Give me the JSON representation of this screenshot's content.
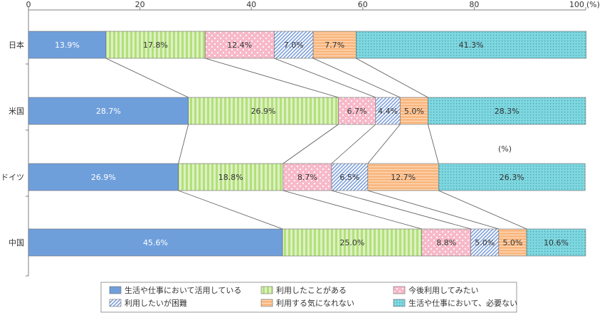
{
  "chart_data": {
    "type": "bar",
    "stacked": true,
    "orientation": "horizontal",
    "categories": [
      "日本",
      "米国",
      "ドイツ",
      "中国"
    ],
    "xlim": [
      0,
      100
    ],
    "x_ticks": [
      "0",
      "20",
      "40",
      "60",
      "80",
      "100"
    ],
    "x_unit": "(%)",
    "unit_note": "(%)",
    "series": [
      {
        "name": "生活や仕事において活用している",
        "values": [
          13.9,
          28.7,
          26.9,
          45.6
        ],
        "labels": [
          "13.9%",
          "28.7%",
          "26.9%",
          "45.6%"
        ],
        "color": "#6f9fdb",
        "pattern": "solid"
      },
      {
        "name": "利用したことがある",
        "values": [
          17.8,
          26.9,
          18.8,
          25.0
        ],
        "labels": [
          "17.8%",
          "26.9%",
          "18.8%",
          "25.0%"
        ],
        "color": "#b3e07a",
        "pattern": "vlines"
      },
      {
        "name": "今後利用してみたい",
        "values": [
          12.4,
          6.7,
          8.7,
          8.8
        ],
        "labels": [
          "12.4%",
          "6.7%",
          "8.7%",
          "8.8%"
        ],
        "color": "#f7b9c9",
        "pattern": "dots"
      },
      {
        "name": "利用したいが困難",
        "values": [
          7.0,
          4.4,
          6.5,
          5.0
        ],
        "labels": [
          "7.0%",
          "4.4%",
          "6.5%",
          "5.0%"
        ],
        "color": "#7fa0dc",
        "pattern": "diag"
      },
      {
        "name": "利用する気になれない",
        "values": [
          7.7,
          5.0,
          12.7,
          5.0
        ],
        "labels": [
          "7.7%",
          "5.0%",
          "12.7%",
          "5.0%"
        ],
        "color": "#f9b880",
        "pattern": "hlines"
      },
      {
        "name": "生活や仕事において、必要ない",
        "values": [
          41.3,
          28.3,
          26.3,
          10.6
        ],
        "labels": [
          "41.3%",
          "28.3%",
          "26.3%",
          "10.6%"
        ],
        "color": "#7fd7e0",
        "pattern": "grid"
      }
    ],
    "legend_position": "bottom",
    "grid": false
  }
}
